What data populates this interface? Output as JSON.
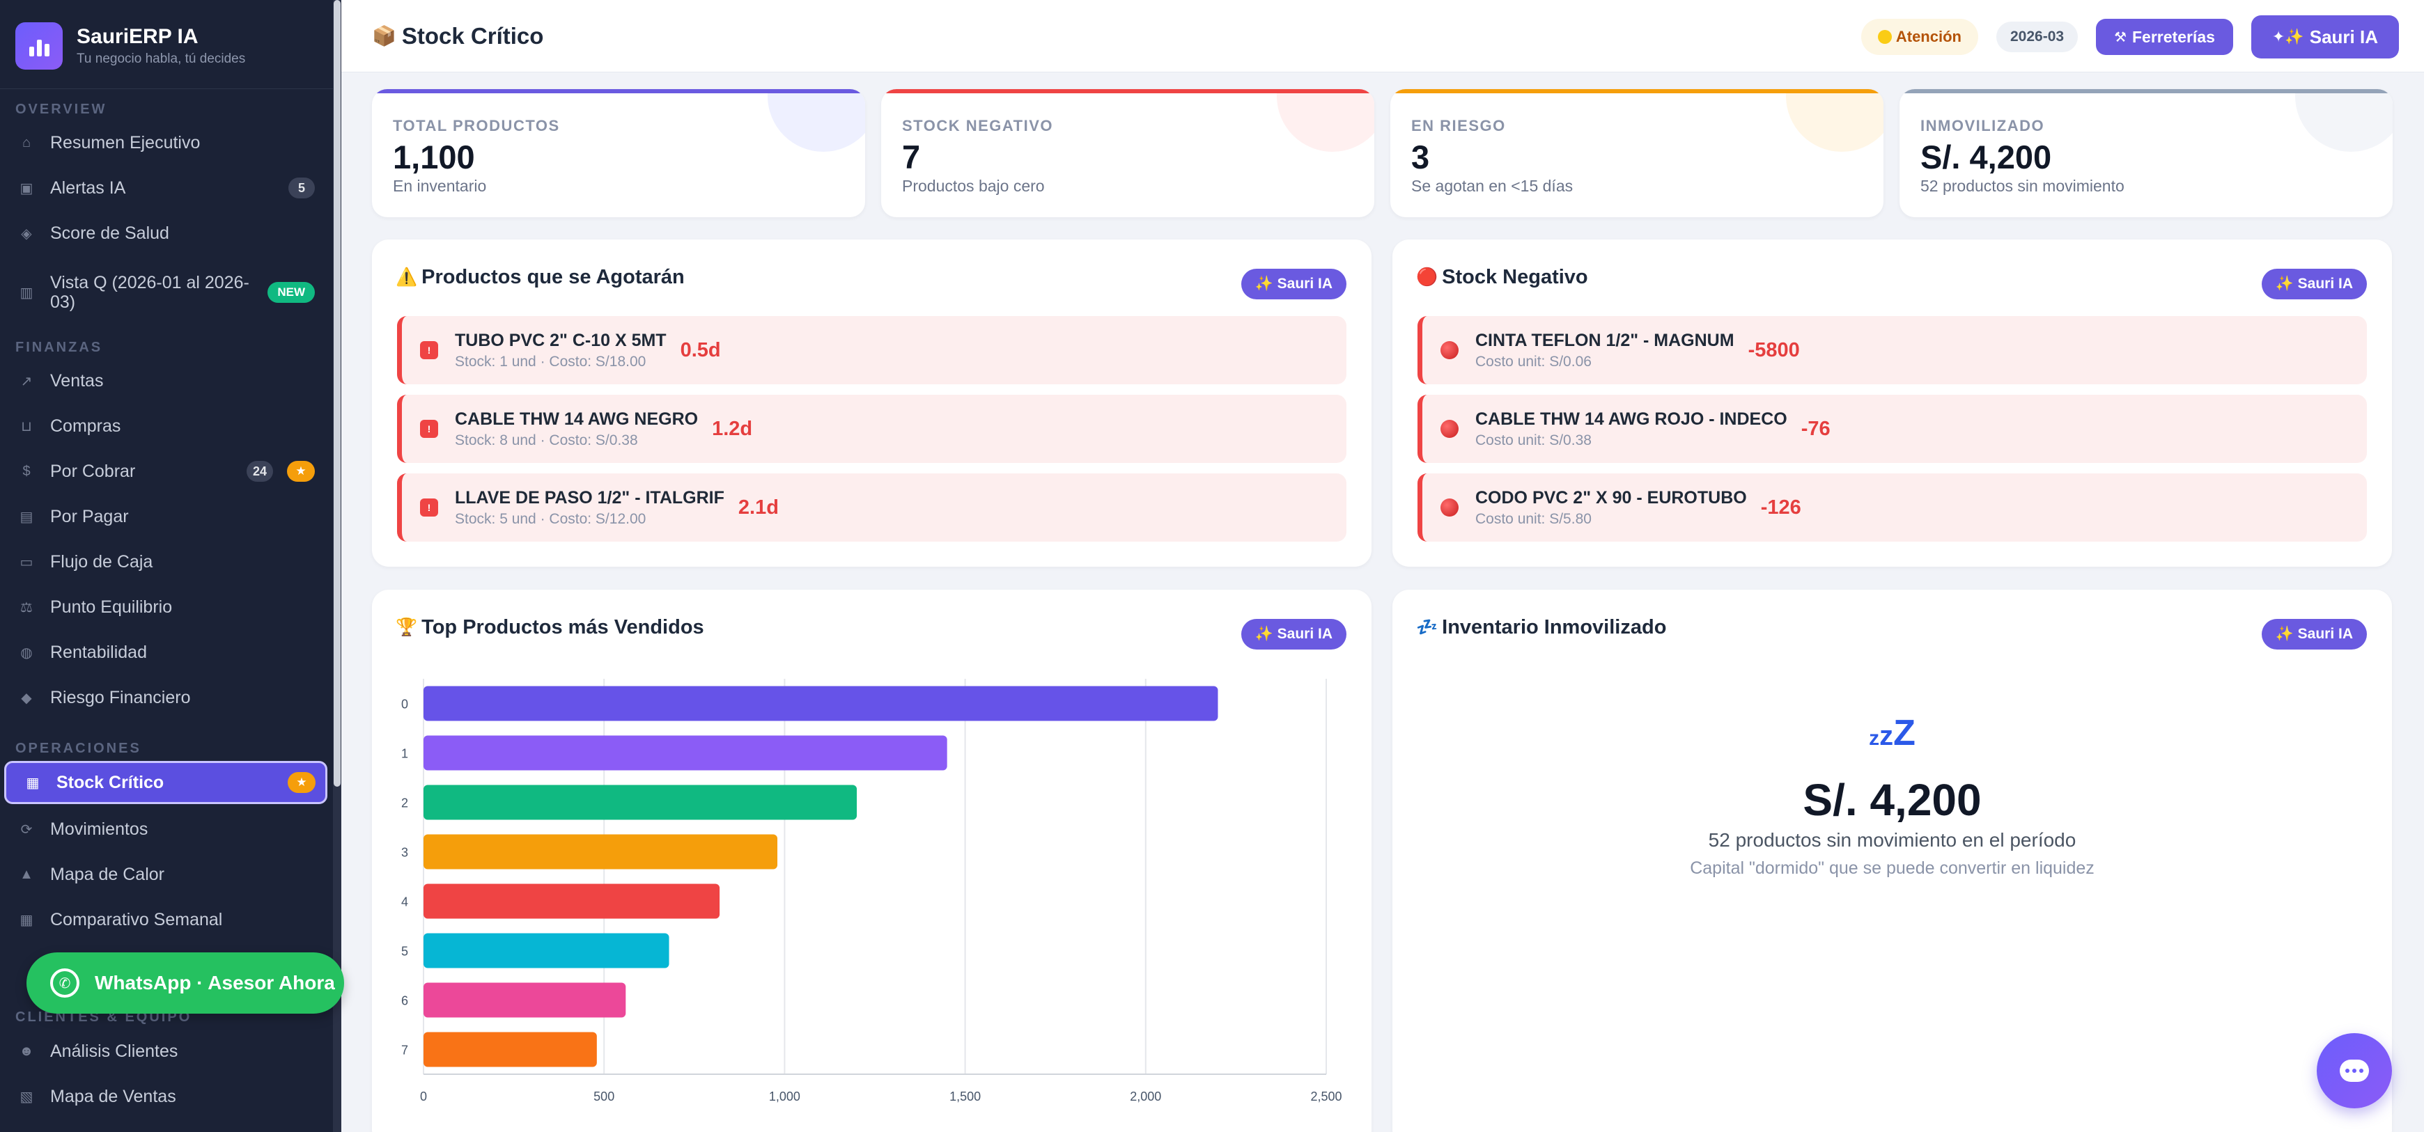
{
  "brand": {
    "name": "SauriERP IA",
    "tagline": "Tu negocio habla, tú decides"
  },
  "sidebar": {
    "sections": {
      "overview": "OVERVIEW",
      "finanzas": "FINANZAS",
      "operaciones": "OPERACIONES",
      "clientes": "CLIENTES & EQUIPO"
    },
    "items": [
      {
        "label": "Resumen Ejecutivo",
        "icon": "home-icon"
      },
      {
        "label": "Alertas IA",
        "icon": "alert-icon",
        "count": "5"
      },
      {
        "label": "Score de Salud",
        "icon": "pill-icon"
      },
      {
        "label": "Vista Q (2026-01 al 2026-03)",
        "icon": "chart-icon",
        "badge": "NEW"
      },
      {
        "label": "Ventas",
        "icon": "trend-icon"
      },
      {
        "label": "Compras",
        "icon": "cart-icon"
      },
      {
        "label": "Por Cobrar",
        "icon": "money-icon",
        "count": "24",
        "star": "★"
      },
      {
        "label": "Por Pagar",
        "icon": "receipt-icon"
      },
      {
        "label": "Flujo de Caja",
        "icon": "cash-icon"
      },
      {
        "label": "Punto Equilibrio",
        "icon": "scale-icon"
      },
      {
        "label": "Rentabilidad",
        "icon": "bag-icon"
      },
      {
        "label": "Riesgo Financiero",
        "icon": "shield-icon"
      },
      {
        "label": "Stock Crítico",
        "icon": "box-icon",
        "star": "★"
      },
      {
        "label": "Movimientos",
        "icon": "cycle-icon"
      },
      {
        "label": "Mapa de Calor",
        "icon": "fire-icon"
      },
      {
        "label": "Comparativo Semanal",
        "icon": "calendar-icon"
      },
      {
        "label": "Análisis Clientes",
        "icon": "users-icon"
      },
      {
        "label": "Mapa de Ventas",
        "icon": "map-icon"
      }
    ],
    "whatsapp": "WhatsApp · Asesor Ahora"
  },
  "header": {
    "title": "Stock Crítico",
    "status": "Atención",
    "period": "2026-03",
    "sector_btn": "Ferreterías",
    "ai_btn": "Sauri IA"
  },
  "kpis": [
    {
      "label": "TOTAL PRODUCTOS",
      "value": "1,100",
      "sub": "En inventario",
      "color": "#6a5ae0",
      "circle": "#eef0ff"
    },
    {
      "label": "STOCK NEGATIVO",
      "value": "7",
      "sub": "Productos bajo cero",
      "color": "#ef4444",
      "circle": "#fff0f0"
    },
    {
      "label": "EN RIESGO",
      "value": "3",
      "sub": "Se agotan en <15 días",
      "color": "#f59e0b",
      "circle": "#fff6e6"
    },
    {
      "label": "INMOVILIZADO",
      "value": "S/. 4,200",
      "sub": "52 productos sin movimiento",
      "color": "#94a3b8",
      "circle": "#f3f5f9"
    }
  ],
  "agotaran": {
    "title": "Productos que se Agotarán",
    "ai_btn": "✨ Sauri IA",
    "items": [
      {
        "name": "TUBO PVC 2\" C-10 X 5MT",
        "meta": "Stock: 1 und · Costo: S/18.00",
        "value": "0.5d"
      },
      {
        "name": "CABLE THW 14 AWG NEGRO",
        "meta": "Stock: 8 und · Costo: S/0.38",
        "value": "1.2d"
      },
      {
        "name": "LLAVE DE PASO 1/2\" - ITALGRIF",
        "meta": "Stock: 5 und · Costo: S/12.00",
        "value": "2.1d"
      }
    ]
  },
  "negativo": {
    "title": "Stock Negativo",
    "ai_btn": "✨ Sauri IA",
    "items": [
      {
        "name": "CINTA TEFLON 1/2\" - MAGNUM",
        "meta": "Costo unit: S/0.06",
        "value": "-5800"
      },
      {
        "name": "CABLE THW 14 AWG ROJO - INDECO",
        "meta": "Costo unit: S/0.38",
        "value": "-76"
      },
      {
        "name": "CODO PVC 2\" X 90 - EUROTUBO",
        "meta": "Costo unit: S/5.80",
        "value": "-126"
      }
    ]
  },
  "top_vendidos": {
    "title": "Top Productos más Vendidos",
    "ai_btn": "✨ Sauri IA"
  },
  "chart_data": {
    "type": "bar",
    "orientation": "horizontal",
    "categories": [
      "0",
      "1",
      "2",
      "3",
      "4",
      "5",
      "6",
      "7"
    ],
    "values": [
      2200,
      1450,
      1200,
      980,
      820,
      680,
      560,
      480
    ],
    "colors": [
      "#6653e8",
      "#8b5cf6",
      "#10b981",
      "#f59e0b",
      "#ef4444",
      "#06b6d4",
      "#ec4899",
      "#f97316"
    ],
    "xlim": [
      0,
      2500
    ],
    "xticks": [
      "0",
      "500",
      "1,000",
      "1,500",
      "2,000",
      "2,500"
    ],
    "grid": true
  },
  "inmovilizado": {
    "title": "Inventario Inmovilizado",
    "ai_btn": "✨ Sauri IA",
    "zz": [
      "z",
      "z",
      "Z"
    ],
    "value": "S/. 4,200",
    "sub": "52 productos sin movimiento en el período",
    "note": "Capital \"dormido\" que se puede convertir en liquidez"
  }
}
